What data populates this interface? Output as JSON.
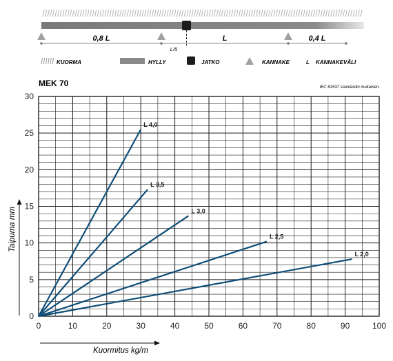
{
  "diagram": {
    "labels": {
      "span1": "0,8 L",
      "span2": "L",
      "span3": "0,4 L",
      "joint": "L/5"
    }
  },
  "legend": [
    {
      "key": "load",
      "label": "KUORMA",
      "icon": "hatch-icon"
    },
    {
      "key": "shelf",
      "label": "HYLLY",
      "icon": "bar-icon"
    },
    {
      "key": "joint",
      "label": "JATKO",
      "icon": "square-icon"
    },
    {
      "key": "bracket",
      "label": "KANNAKE",
      "icon": "triangle-icon"
    },
    {
      "key": "span",
      "letter": "L",
      "label": "KANNAKEVÄLI"
    }
  ],
  "chart_data": {
    "type": "line",
    "title": "MEK 70",
    "subtitle": "IEC 61537 standardin mukainen.",
    "xlabel": "Kuormitus kg/m",
    "ylabel": "Taipuma mm",
    "xlim": [
      0,
      100
    ],
    "ylim": [
      0,
      30
    ],
    "xticks": [
      0,
      10,
      20,
      30,
      40,
      50,
      60,
      70,
      80,
      90,
      100
    ],
    "yticks": [
      0,
      5,
      10,
      15,
      20,
      25,
      30
    ],
    "grid": true,
    "line_color": "#0f4e78",
    "series": [
      {
        "name": "L 4,0",
        "x": [
          0,
          30
        ],
        "y": [
          0,
          25.5
        ]
      },
      {
        "name": "L 3,5",
        "x": [
          0,
          32
        ],
        "y": [
          0,
          17.3
        ]
      },
      {
        "name": "L 3,0",
        "x": [
          0,
          44
        ],
        "y": [
          0,
          13.7
        ]
      },
      {
        "name": "L 2,5",
        "x": [
          0,
          67
        ],
        "y": [
          0,
          10.2
        ]
      },
      {
        "name": "L 2,0",
        "x": [
          0,
          92
        ],
        "y": [
          0,
          7.8
        ]
      }
    ]
  }
}
